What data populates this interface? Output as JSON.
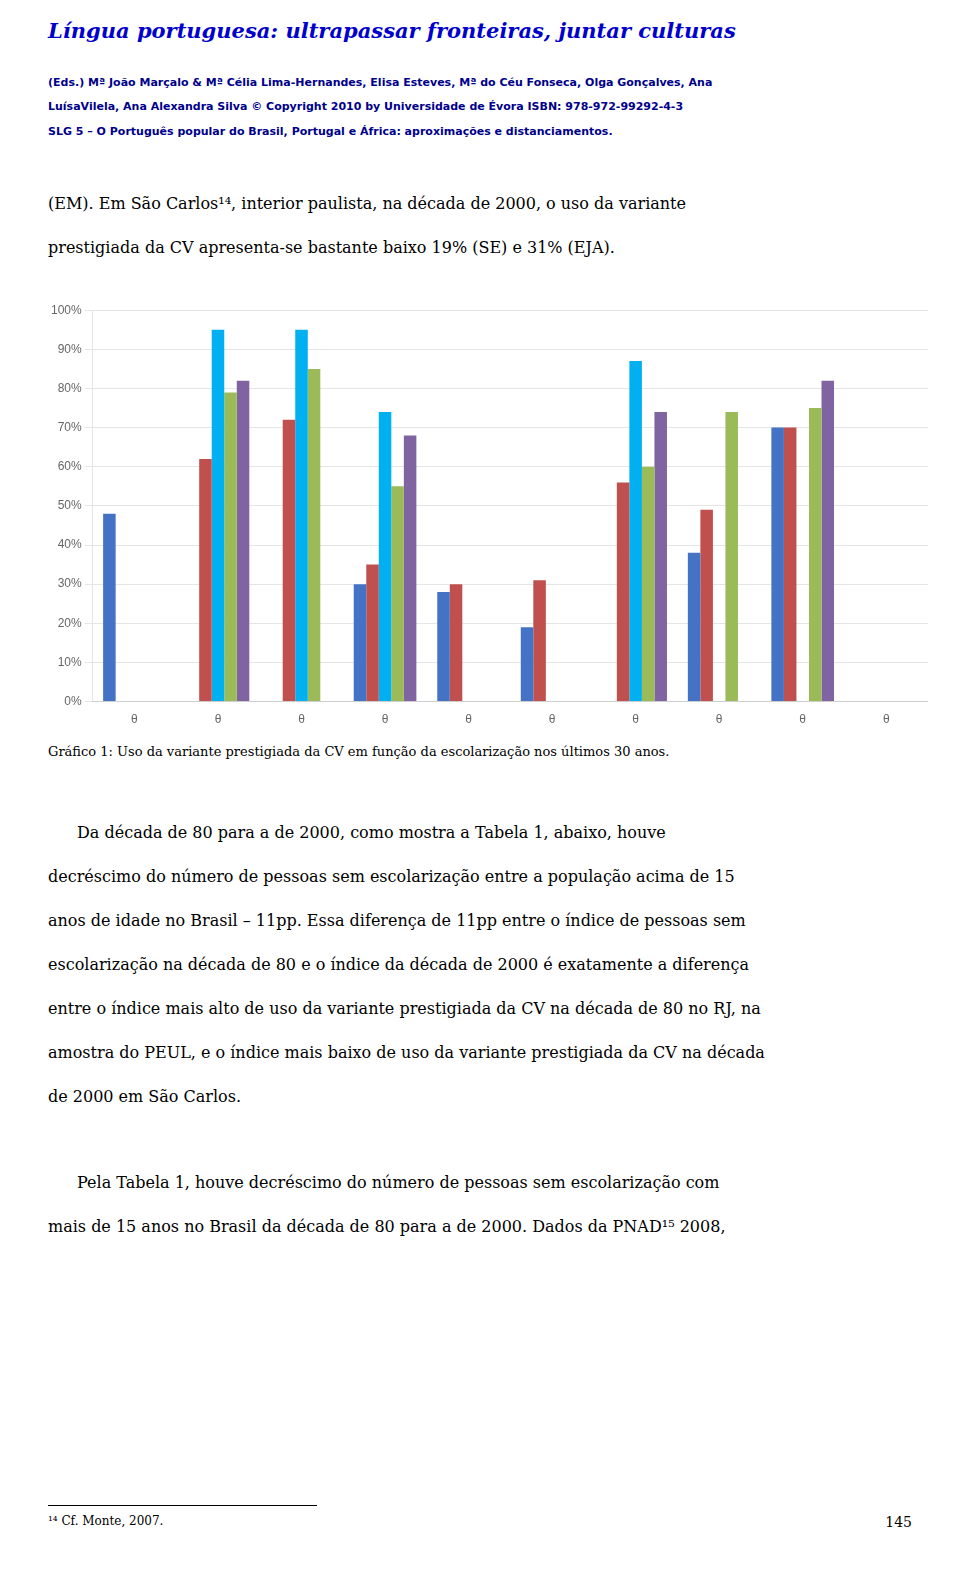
{
  "chart_data": {
    "type": "bar",
    "title": "Língua portuguesa: ultrapassar fronteiras, juntar culturas",
    "annotations": [
      "(Eds.) Mª João Marçalo & Mª Célia Lima-Hernandes, Elisa Esteves, Mª do Céu Fonseca, Olga Gonçalves, Ana",
      "LuísaVilela, Ana Alexandra Silva     ©  Copyright 2010 by Universidade de Évora  ISBN: 978-972-99292-4-3",
      "SLG 5 – O Português popular do Brasil, Portugal e África: aproximações e distanciamentos.",
      "(EM). Em São Carlos¹⁴, interior paulista, na década de 2000, o uso da variante",
      "prestigiada da CV apresenta-se bastante baixo 19% (SE) e 31% (EJA).",
      "Gráfico 1: Uso da variante prestigiada da CV em função da escolarização nos últimos 30 anos.",
      "Da década de 80 para a de 2000, como mostra a Tabela 1, abaixo, houve",
      "decréscimo do número de pessoas sem escolarização entre a população acima de 15",
      "anos de idade no Brasil – 11pp. Essa diferença de 11pp entre o índice de pessoas sem",
      "escolarização na década de 80 e o índice da década de 2000 é exatamente a diferença",
      "entre o índice mais alto de uso da variante prestigiada da CV na década de 80 no RJ, na",
      "amostra do PEUL, e o índice mais baixo de uso da variante prestigiada da CV na década",
      "de 2000 em São Carlos.",
      "Pela Tabela 1, houve decréscimo do número de pessoas sem escolarização com",
      "mais de 15 anos no Brasil da década de 80 para a de 2000. Dados da PNAD¹⁵ 2008,",
      "¹⁴ Cf. Monte, 2007.",
      "145"
    ],
    "categories": [
      "θ",
      "θ",
      "θ",
      "θ",
      "θ",
      "θ",
      "θ",
      "θ",
      "θ",
      "θ"
    ],
    "series": [
      {
        "color": "#4472C4",
        "values": [
          48,
          0,
          0,
          30,
          28,
          19,
          0,
          38,
          70,
          0
        ]
      },
      {
        "color": "#C0504D",
        "values": [
          0,
          62,
          72,
          35,
          30,
          31,
          56,
          49,
          70,
          0
        ]
      },
      {
        "color": "#00B0F0",
        "values": [
          0,
          95,
          95,
          74,
          0,
          0,
          87,
          0,
          0,
          0
        ]
      },
      {
        "color": "#9BBB59",
        "values": [
          0,
          79,
          85,
          55,
          0,
          0,
          60,
          74,
          75,
          0
        ]
      },
      {
        "color": "#8064A2",
        "values": [
          0,
          82,
          0,
          68,
          0,
          0,
          74,
          0,
          82,
          0
        ]
      }
    ],
    "ylim": [
      0,
      100
    ],
    "yticks": [
      {
        "value": 0,
        "label": "0%"
      },
      {
        "value": 10,
        "label": "10%"
      },
      {
        "value": 20,
        "label": "20%"
      },
      {
        "value": 30,
        "label": "30%"
      },
      {
        "value": 40,
        "label": "40%"
      },
      {
        "value": 50,
        "label": "50%"
      },
      {
        "value": 60,
        "label": "60%"
      },
      {
        "value": 70,
        "label": "70%"
      },
      {
        "value": 80,
        "label": "80%"
      },
      {
        "value": 90,
        "label": "90%"
      },
      {
        "value": 100,
        "label": "100%"
      }
    ],
    "grid": true
  }
}
